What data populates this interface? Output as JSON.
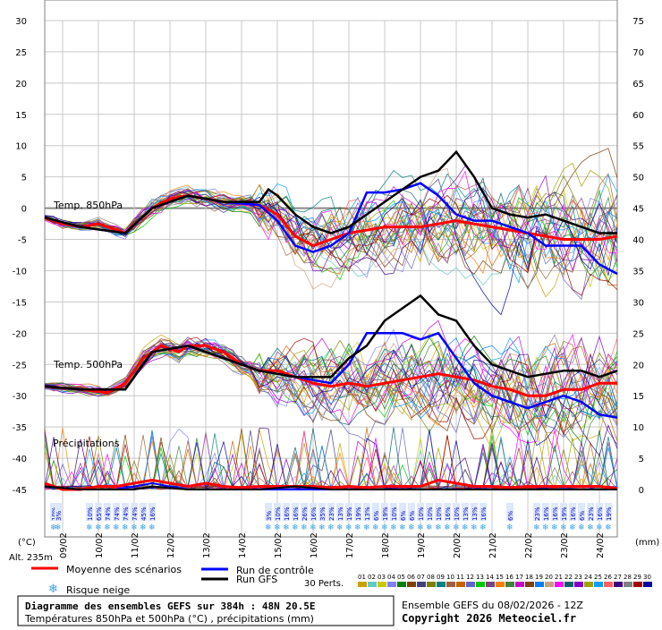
{
  "chart_data": {
    "type": "line",
    "title": "Diagramme des ensembles GEFS sur 384h : 48N 20.5E",
    "subtitle": "Températures 850hPa et 500hPa (°C) , précipitations (mm)",
    "left_axis": {
      "ticks": [
        30,
        25,
        20,
        15,
        10,
        5,
        0,
        -5,
        -10,
        -15,
        -20,
        -25,
        -30,
        -35,
        -40,
        -45
      ],
      "ylim": [
        -45,
        30
      ],
      "unit_label": "(°C)"
    },
    "right_axis": {
      "ticks": [
        75,
        70,
        65,
        60,
        55,
        50,
        45,
        40,
        35,
        30,
        25,
        20,
        15,
        10,
        5,
        0
      ],
      "ylim": [
        0,
        75
      ],
      "unit_label": "(mm)"
    },
    "altitude_label": "Alt. 235m",
    "x_dates": [
      "09/02",
      "10/02",
      "11/02",
      "12/02",
      "13/02",
      "14/02",
      "15/02",
      "16/02",
      "17/02",
      "18/02",
      "19/02",
      "20/02",
      "21/02",
      "22/02",
      "23/02",
      "24/02"
    ],
    "x_range_hours": [
      0,
      384
    ],
    "section_labels": {
      "t850": "Temp. 850hPa",
      "t500": "Temp. 500hPa",
      "precip": "Précipitations"
    },
    "snow_risk": [
      {
        "h": 6,
        "pct": "10%"
      },
      {
        "h": 9,
        "pct": "3%"
      },
      {
        "h": 30,
        "pct": "10%"
      },
      {
        "h": 36,
        "pct": "65%"
      },
      {
        "h": 42,
        "pct": "74%"
      },
      {
        "h": 48,
        "pct": "74%"
      },
      {
        "h": 54,
        "pct": "74%"
      },
      {
        "h": 60,
        "pct": "74%"
      },
      {
        "h": 66,
        "pct": "45%"
      },
      {
        "h": 72,
        "pct": "16%"
      },
      {
        "h": 150,
        "pct": "3%"
      },
      {
        "h": 156,
        "pct": "10%"
      },
      {
        "h": 162,
        "pct": "16%"
      },
      {
        "h": 168,
        "pct": "16%"
      },
      {
        "h": 174,
        "pct": "26%"
      },
      {
        "h": 180,
        "pct": "16%"
      },
      {
        "h": 186,
        "pct": "35%"
      },
      {
        "h": 192,
        "pct": "23%"
      },
      {
        "h": 198,
        "pct": "13%"
      },
      {
        "h": 204,
        "pct": "19%"
      },
      {
        "h": 210,
        "pct": "19%"
      },
      {
        "h": 216,
        "pct": "13%"
      },
      {
        "h": 222,
        "pct": "6%"
      },
      {
        "h": 228,
        "pct": "19%"
      },
      {
        "h": 234,
        "pct": "10%"
      },
      {
        "h": 240,
        "pct": "6%"
      },
      {
        "h": 246,
        "pct": "6%"
      },
      {
        "h": 252,
        "pct": "10%"
      },
      {
        "h": 258,
        "pct": "10%"
      },
      {
        "h": 264,
        "pct": "10%"
      },
      {
        "h": 270,
        "pct": "16%"
      },
      {
        "h": 276,
        "pct": "10%"
      },
      {
        "h": 282,
        "pct": "13%"
      },
      {
        "h": 288,
        "pct": "13%"
      },
      {
        "h": 294,
        "pct": "16%"
      },
      {
        "h": 312,
        "pct": "6%"
      },
      {
        "h": 330,
        "pct": "23%"
      },
      {
        "h": 336,
        "pct": "16%"
      },
      {
        "h": 342,
        "pct": "16%"
      },
      {
        "h": 348,
        "pct": "19%"
      },
      {
        "h": 354,
        "pct": "16%"
      },
      {
        "h": 360,
        "pct": "6%"
      },
      {
        "h": 366,
        "pct": "23%"
      },
      {
        "h": 372,
        "pct": "16%"
      },
      {
        "h": 378,
        "pct": "19%"
      }
    ],
    "series": [
      {
        "name": "Moyenne des scénarios",
        "color": "#ff0000",
        "t850": [
          [
            0,
            -1.5
          ],
          [
            12,
            -2.5
          ],
          [
            24,
            -3
          ],
          [
            36,
            -2.5
          ],
          [
            54,
            -4
          ],
          [
            72,
            0
          ],
          [
            84,
            1.5
          ],
          [
            96,
            2
          ],
          [
            108,
            1.5
          ],
          [
            120,
            1
          ],
          [
            144,
            0.5
          ],
          [
            156,
            -1
          ],
          [
            168,
            -4.5
          ],
          [
            180,
            -6
          ],
          [
            192,
            -5
          ],
          [
            204,
            -4
          ],
          [
            216,
            -3.5
          ],
          [
            228,
            -3
          ],
          [
            240,
            -3
          ],
          [
            252,
            -3
          ],
          [
            264,
            -2.5
          ],
          [
            276,
            -2
          ],
          [
            288,
            -2.5
          ],
          [
            300,
            -3
          ],
          [
            312,
            -3.5
          ],
          [
            324,
            -4
          ],
          [
            336,
            -4.5
          ],
          [
            348,
            -5
          ],
          [
            360,
            -5
          ],
          [
            372,
            -5
          ],
          [
            384,
            -4.5
          ]
        ],
        "t500": [
          [
            0,
            -28.5
          ],
          [
            24,
            -29
          ],
          [
            42,
            -29.5
          ],
          [
            54,
            -28
          ],
          [
            66,
            -24
          ],
          [
            78,
            -22
          ],
          [
            90,
            -23
          ],
          [
            96,
            -22
          ],
          [
            108,
            -22
          ],
          [
            120,
            -23
          ],
          [
            132,
            -25
          ],
          [
            144,
            -26
          ],
          [
            156,
            -26
          ],
          [
            168,
            -27
          ],
          [
            180,
            -28
          ],
          [
            192,
            -28.5
          ],
          [
            204,
            -28
          ],
          [
            216,
            -28.5
          ],
          [
            228,
            -28
          ],
          [
            240,
            -27.5
          ],
          [
            252,
            -27
          ],
          [
            264,
            -26.5
          ],
          [
            276,
            -27
          ],
          [
            288,
            -27.5
          ],
          [
            300,
            -28.5
          ],
          [
            312,
            -29
          ],
          [
            324,
            -30
          ],
          [
            336,
            -30
          ],
          [
            348,
            -29
          ],
          [
            360,
            -29
          ],
          [
            372,
            -28
          ],
          [
            384,
            -28
          ]
        ],
        "precip": [
          [
            0,
            1
          ],
          [
            6,
            0.5
          ],
          [
            12,
            0
          ],
          [
            24,
            0
          ],
          [
            36,
            0.5
          ],
          [
            48,
            0.5
          ],
          [
            60,
            1
          ],
          [
            72,
            1.5
          ],
          [
            84,
            1
          ],
          [
            96,
            0.5
          ],
          [
            108,
            1
          ],
          [
            120,
            0.5
          ],
          [
            132,
            0.3
          ],
          [
            144,
            0.5
          ],
          [
            156,
            0.5
          ],
          [
            168,
            0.5
          ],
          [
            180,
            0.5
          ],
          [
            192,
            0.3
          ],
          [
            204,
            0.5
          ],
          [
            216,
            0.3
          ],
          [
            228,
            0.5
          ],
          [
            240,
            0.5
          ],
          [
            252,
            0.5
          ],
          [
            264,
            1.5
          ],
          [
            276,
            1
          ],
          [
            288,
            0.5
          ],
          [
            300,
            0.5
          ],
          [
            312,
            0.3
          ],
          [
            324,
            0.5
          ],
          [
            336,
            0.5
          ],
          [
            348,
            0.5
          ],
          [
            360,
            0.5
          ],
          [
            372,
            0.5
          ],
          [
            384,
            0.2
          ]
        ]
      },
      {
        "name": "Run de contrôle",
        "color": "#0000ff",
        "t850": [
          [
            0,
            -1.5
          ],
          [
            24,
            -3
          ],
          [
            54,
            -4
          ],
          [
            72,
            0
          ],
          [
            96,
            2
          ],
          [
            120,
            1
          ],
          [
            144,
            0.5
          ],
          [
            156,
            -2
          ],
          [
            168,
            -6
          ],
          [
            180,
            -7
          ],
          [
            192,
            -6
          ],
          [
            204,
            -4
          ],
          [
            216,
            2.5
          ],
          [
            228,
            2.5
          ],
          [
            240,
            3
          ],
          [
            252,
            4
          ],
          [
            264,
            2
          ],
          [
            276,
            -1
          ],
          [
            288,
            -2
          ],
          [
            300,
            -2
          ],
          [
            312,
            -3
          ],
          [
            324,
            -4
          ],
          [
            336,
            -6
          ],
          [
            348,
            -6
          ],
          [
            360,
            -6
          ],
          [
            372,
            -9
          ],
          [
            384,
            -10.5
          ]
        ],
        "t500": [
          [
            0,
            -28.5
          ],
          [
            24,
            -29
          ],
          [
            54,
            -29
          ],
          [
            72,
            -23
          ],
          [
            96,
            -22
          ],
          [
            120,
            -24
          ],
          [
            144,
            -26
          ],
          [
            168,
            -27
          ],
          [
            192,
            -28
          ],
          [
            204,
            -25
          ],
          [
            216,
            -20
          ],
          [
            228,
            -20
          ],
          [
            240,
            -20
          ],
          [
            252,
            -21
          ],
          [
            264,
            -20
          ],
          [
            276,
            -24
          ],
          [
            288,
            -28
          ],
          [
            300,
            -30
          ],
          [
            312,
            -31
          ],
          [
            324,
            -32
          ],
          [
            336,
            -31
          ],
          [
            348,
            -30
          ],
          [
            360,
            -31
          ],
          [
            372,
            -33
          ],
          [
            384,
            -33.5
          ]
        ],
        "precip": [
          [
            0,
            0.5
          ],
          [
            24,
            0
          ],
          [
            48,
            0
          ],
          [
            72,
            1
          ],
          [
            96,
            0
          ],
          [
            120,
            0
          ],
          [
            144,
            0
          ],
          [
            168,
            0
          ],
          [
            192,
            0
          ],
          [
            216,
            0
          ],
          [
            228,
            0
          ],
          [
            240,
            0
          ],
          [
            252,
            0
          ],
          [
            264,
            0
          ],
          [
            276,
            0
          ],
          [
            288,
            0
          ],
          [
            300,
            0
          ],
          [
            312,
            0
          ],
          [
            324,
            0
          ],
          [
            348,
            0
          ],
          [
            360,
            0
          ],
          [
            384,
            0
          ]
        ]
      },
      {
        "name": "Run GFS",
        "color": "#000000",
        "t850": [
          [
            0,
            -1.5
          ],
          [
            24,
            -3
          ],
          [
            54,
            -4
          ],
          [
            72,
            0
          ],
          [
            96,
            2
          ],
          [
            120,
            1
          ],
          [
            144,
            1
          ],
          [
            150,
            3
          ],
          [
            156,
            2
          ],
          [
            168,
            -1
          ],
          [
            180,
            -3
          ],
          [
            192,
            -4
          ],
          [
            204,
            -3
          ],
          [
            216,
            -1
          ],
          [
            228,
            1
          ],
          [
            240,
            3
          ],
          [
            252,
            5
          ],
          [
            264,
            6
          ],
          [
            276,
            9
          ],
          [
            288,
            5
          ],
          [
            300,
            0
          ],
          [
            312,
            -1
          ],
          [
            324,
            -1.5
          ],
          [
            336,
            -1
          ],
          [
            348,
            -2
          ],
          [
            360,
            -3
          ],
          [
            372,
            -4
          ],
          [
            384,
            -4
          ]
        ],
        "t500": [
          [
            0,
            -28.5
          ],
          [
            24,
            -29
          ],
          [
            54,
            -29
          ],
          [
            72,
            -23
          ],
          [
            96,
            -22
          ],
          [
            120,
            -24
          ],
          [
            144,
            -26
          ],
          [
            168,
            -27
          ],
          [
            192,
            -27
          ],
          [
            204,
            -24
          ],
          [
            216,
            -22
          ],
          [
            228,
            -18
          ],
          [
            240,
            -16
          ],
          [
            252,
            -14
          ],
          [
            264,
            -17
          ],
          [
            276,
            -18
          ],
          [
            288,
            -22
          ],
          [
            300,
            -25
          ],
          [
            312,
            -26
          ],
          [
            324,
            -27
          ],
          [
            336,
            -26.5
          ],
          [
            348,
            -26
          ],
          [
            360,
            -26
          ],
          [
            372,
            -27
          ],
          [
            384,
            -26
          ]
        ],
        "precip": [
          [
            0,
            0.5
          ],
          [
            24,
            0
          ],
          [
            48,
            0
          ],
          [
            60,
            0
          ],
          [
            72,
            0.5
          ],
          [
            96,
            0
          ],
          [
            120,
            0
          ],
          [
            144,
            0
          ],
          [
            168,
            0.5
          ],
          [
            192,
            0
          ],
          [
            216,
            0
          ],
          [
            240,
            0
          ],
          [
            252,
            0
          ],
          [
            264,
            0
          ],
          [
            288,
            0
          ],
          [
            300,
            0
          ],
          [
            312,
            0
          ],
          [
            324,
            0
          ],
          [
            348,
            0
          ],
          [
            360,
            0
          ],
          [
            384,
            0
          ]
        ]
      }
    ],
    "perturbations": {
      "label": "30 Perts.",
      "numbers": [
        "01",
        "02",
        "03",
        "04",
        "05",
        "06",
        "07",
        "08",
        "09",
        "10",
        "11",
        "12",
        "13",
        "14",
        "15",
        "16",
        "17",
        "18",
        "19",
        "20",
        "21",
        "22",
        "23",
        "24",
        "25",
        "26",
        "27",
        "28",
        "29",
        "30"
      ],
      "colors": [
        "#c8a000",
        "#64c8c8",
        "#c8c800",
        "#8080ff",
        "#008000",
        "#804000",
        "#404080",
        "#808000",
        "#008080",
        "#a06040",
        "#c86400",
        "#6464c8",
        "#00c800",
        "#804080",
        "#ff8000",
        "#408040",
        "#c800c8",
        "#804000",
        "#0080ff",
        "#c8a080",
        "#ff00ff",
        "#006464",
        "#8000c8",
        "#a0a000",
        "#00a0ff",
        "#ff6060",
        "#400080",
        "#808080",
        "#a00000",
        "#0000a0"
      ]
    },
    "legend": {
      "mean": "Moyenne des scénarios",
      "control": "Run de contrôle",
      "gfs": "Run GFS",
      "snow": "Risque neige"
    },
    "run_info": "Ensemble GEFS du 08/02/2026 - 12Z",
    "copyright": "Copyright 2026 Meteociel.fr"
  }
}
